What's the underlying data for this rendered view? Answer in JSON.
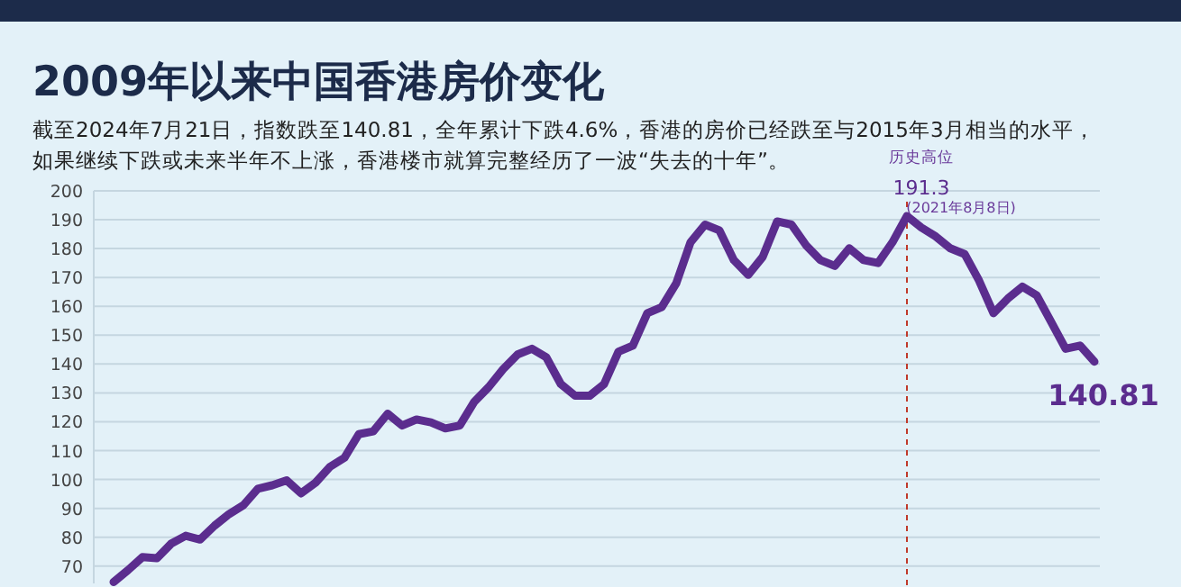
{
  "chart_data": {
    "type": "line",
    "title": "2009年以来中国香港房价变化",
    "subtitle": "截至2024年7月21日，指数跌至140.81，全年累计下跌4.6%，香港的房价已经跌至与2015年3月相当的水平，如果继续下跌或未来半年不上涨，香港楼市就算完整经历了一波“失去的十年”。",
    "annotations": [
      "历史高位",
      "(2021年8月8日)"
    ],
    "categories": [
      null,
      null,
      null,
      null,
      null,
      null,
      null,
      null,
      null,
      null,
      null,
      null,
      null,
      null,
      null,
      null,
      null,
      null,
      null,
      null,
      null,
      null,
      null,
      null,
      null,
      null,
      null,
      null,
      null,
      null,
      null,
      null,
      null,
      null,
      null,
      null,
      null,
      null,
      null,
      null,
      null,
      null,
      null,
      null,
      null,
      null,
      null,
      null,
      null,
      null,
      null,
      null,
      null,
      null,
      null,
      null,
      null,
      null,
      null,
      null,
      null,
      null,
      null,
      null,
      null,
      null,
      null,
      null,
      null
    ],
    "series": [
      {
        "color": "#5b2d8e",
        "values": [
          64.5,
          68.6,
          73.1,
          72.7,
          77.8,
          80.5,
          79.2,
          84.0,
          88.0,
          91.1,
          96.8,
          98.0,
          99.7,
          95.2,
          98.9,
          104.4,
          107.5,
          115.7,
          116.7,
          122.8,
          118.7,
          120.8,
          119.8,
          117.7,
          118.7,
          126.9,
          132.0,
          138.2,
          143.3,
          145.3,
          142.3,
          133.1,
          129.0,
          129.0,
          133.0,
          144.3,
          146.4,
          157.6,
          159.7,
          167.9,
          182.2,
          188.3,
          186.3,
          176.0,
          170.9,
          177.1,
          189.4,
          188.3,
          181.2,
          176.0,
          174.0,
          180.1,
          176.0,
          175.0,
          182.2,
          191.3,
          187.3,
          184.2,
          180.1,
          178.1,
          168.9,
          157.6,
          162.7,
          166.8,
          163.8,
          154.6,
          145.3,
          146.4,
          140.81
        ],
        "value_labels": [
          null,
          null,
          null,
          null,
          null,
          null,
          null,
          null,
          null,
          null,
          null,
          null,
          null,
          null,
          null,
          null,
          null,
          null,
          null,
          null,
          null,
          null,
          null,
          null,
          null,
          null,
          null,
          null,
          null,
          null,
          null,
          null,
          null,
          null,
          null,
          null,
          null,
          null,
          null,
          null,
          null,
          null,
          null,
          null,
          null,
          null,
          null,
          null,
          null,
          null,
          null,
          null,
          null,
          null,
          null,
          "191.3",
          null,
          null,
          null,
          null,
          null,
          null,
          null,
          null,
          null,
          null,
          null,
          null,
          "140.81"
        ]
      }
    ],
    "ylim": [
      64,
      200
    ],
    "yticks": [
      70,
      80,
      90,
      100,
      110,
      120,
      130,
      140,
      150,
      160,
      170,
      180,
      190,
      200
    ],
    "grid": "y",
    "tick_labels": "y"
  }
}
